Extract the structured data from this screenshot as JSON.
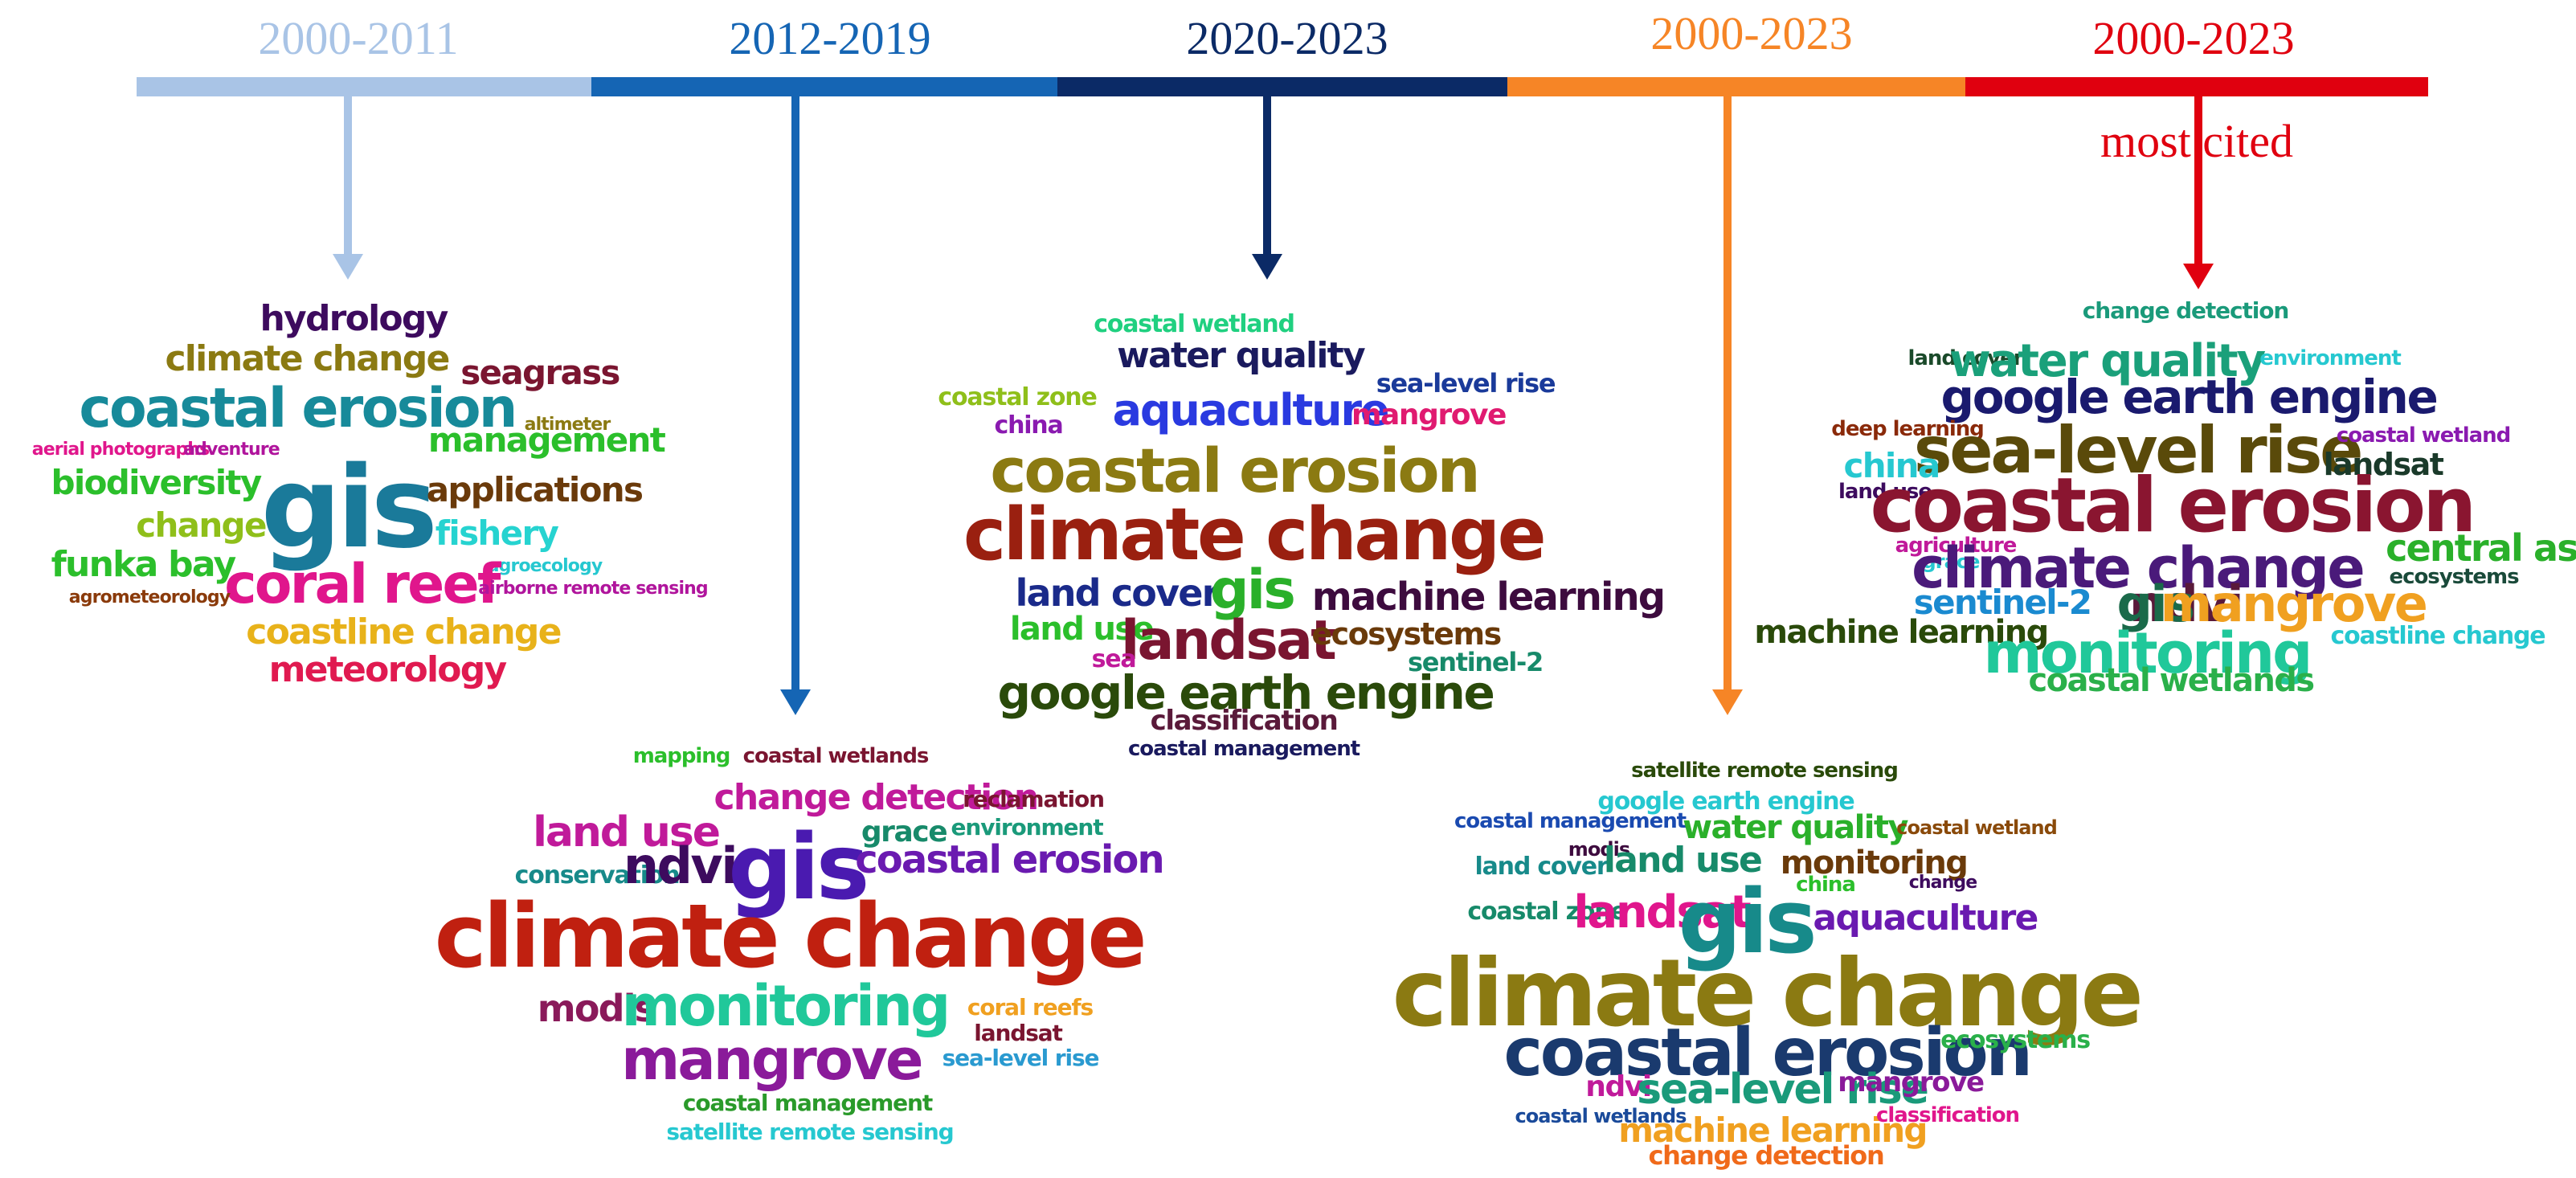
{
  "timeline": {
    "periods": [
      {
        "label": "2000-2011",
        "color": "#a9c4e6"
      },
      {
        "label": "2012-2019",
        "color": "#1565b4"
      },
      {
        "label": "2020-2023",
        "color": "#0b2a66"
      },
      {
        "label": "2000-2023",
        "color": "#f68526"
      },
      {
        "label": "2000-2023",
        "color": "#e0000f"
      }
    ],
    "note": "most cited"
  },
  "clouds": [
    {
      "words": [
        {
          "text": "hydrology",
          "color": "#3d0b5e"
        },
        {
          "text": "climate change",
          "color": "#8b7a12"
        },
        {
          "text": "seagrass",
          "color": "#7a1530"
        },
        {
          "text": "coastal erosion",
          "color": "#178a9a"
        },
        {
          "text": "altimeter",
          "color": "#8b7a12"
        },
        {
          "text": "aerial photographs",
          "color": "#e0168c"
        },
        {
          "text": "adventure",
          "color": "#b0149c"
        },
        {
          "text": "management",
          "color": "#2bbf2b"
        },
        {
          "text": "biodiversity",
          "color": "#2bbf2b"
        },
        {
          "text": "gis",
          "color": "#1a7a9a"
        },
        {
          "text": "applications",
          "color": "#6a3a0a"
        },
        {
          "text": "change",
          "color": "#8fbf1a"
        },
        {
          "text": "fishery",
          "color": "#26d3d0"
        },
        {
          "text": "funka bay",
          "color": "#2bbf2b"
        },
        {
          "text": "agroecology",
          "color": "#26c8d0"
        },
        {
          "text": "coral reef",
          "color": "#e0168c"
        },
        {
          "text": "airborne remote sensing",
          "color": "#b0149c"
        },
        {
          "text": "agrometeorology",
          "color": "#8a3a0a"
        },
        {
          "text": "coastline change",
          "color": "#e8b21a"
        },
        {
          "text": "meteorology",
          "color": "#e01a50"
        }
      ]
    },
    {
      "words": [
        {
          "text": "mapping",
          "color": "#2bbf2b"
        },
        {
          "text": "coastal wetlands",
          "color": "#7a1530"
        },
        {
          "text": "change detection",
          "color": "#c01a9a"
        },
        {
          "text": "reclamation",
          "color": "#7a1530"
        },
        {
          "text": "land use",
          "color": "#c01a9a"
        },
        {
          "text": "environment",
          "color": "#1a9a7a"
        },
        {
          "text": "grace",
          "color": "#178a6a"
        },
        {
          "text": "conservation",
          "color": "#178a8a"
        },
        {
          "text": "ndvi",
          "color": "#3d0b5e"
        },
        {
          "text": "gis",
          "color": "#4a1ab0"
        },
        {
          "text": "coastal erosion",
          "color": "#6a1ab0"
        },
        {
          "text": "climate change",
          "color": "#c02010"
        },
        {
          "text": "modis",
          "color": "#8a1a5a"
        },
        {
          "text": "monitoring",
          "color": "#20c89a"
        },
        {
          "text": "coral reefs",
          "color": "#f0a020"
        },
        {
          "text": "landsat",
          "color": "#7a1530"
        },
        {
          "text": "sea-level rise",
          "color": "#2a9ad0"
        },
        {
          "text": "mangrove",
          "color": "#8a1a9a"
        },
        {
          "text": "coastal management",
          "color": "#2a9a2a"
        },
        {
          "text": "satellite remote sensing",
          "color": "#26c8d0"
        }
      ]
    },
    {
      "words": [
        {
          "text": "coastal wetland",
          "color": "#20d080"
        },
        {
          "text": "water quality",
          "color": "#1a1a5e"
        },
        {
          "text": "sea-level rise",
          "color": "#1a3a9a"
        },
        {
          "text": "coastal zone",
          "color": "#8fbf1a"
        },
        {
          "text": "aquaculture",
          "color": "#2a3ae0"
        },
        {
          "text": "mangrove",
          "color": "#e01a70"
        },
        {
          "text": "china",
          "color": "#8a1ab0"
        },
        {
          "text": "coastal erosion",
          "color": "#8b7a12"
        },
        {
          "text": "climate change",
          "color": "#9a2010"
        },
        {
          "text": "land cover",
          "color": "#1a2a8a"
        },
        {
          "text": "gis",
          "color": "#2ab02a"
        },
        {
          "text": "machine learning",
          "color": "#3d0b3e"
        },
        {
          "text": "land use",
          "color": "#2bbf2b"
        },
        {
          "text": "landsat",
          "color": "#7a1530"
        },
        {
          "text": "ecosystems",
          "color": "#6a3a0a"
        },
        {
          "text": "sea",
          "color": "#c01a9a"
        },
        {
          "text": "sentinel-2",
          "color": "#178a6a"
        },
        {
          "text": "google earth engine",
          "color": "#2a4a0a"
        },
        {
          "text": "classification",
          "color": "#5a1a3a"
        },
        {
          "text": "coastal management",
          "color": "#1a1a5e"
        }
      ]
    },
    {
      "words": [
        {
          "text": "satellite remote sensing",
          "color": "#2a4a0a"
        },
        {
          "text": "google earth engine",
          "color": "#26c8d0"
        },
        {
          "text": "coastal management",
          "color": "#1a4ab0"
        },
        {
          "text": "water quality",
          "color": "#2ab02a"
        },
        {
          "text": "coastal wetland",
          "color": "#8a4a0a"
        },
        {
          "text": "modis",
          "color": "#3d0b3e"
        },
        {
          "text": "land cover",
          "color": "#178a8a"
        },
        {
          "text": "land use",
          "color": "#178a6a"
        },
        {
          "text": "monitoring",
          "color": "#6a3a0a"
        },
        {
          "text": "china",
          "color": "#2bbf2b"
        },
        {
          "text": "change",
          "color": "#3d0b5e"
        },
        {
          "text": "coastal zone",
          "color": "#178a6a"
        },
        {
          "text": "landsat",
          "color": "#e0168c"
        },
        {
          "text": "gis",
          "color": "#178a8a"
        },
        {
          "text": "aquaculture",
          "color": "#6a1ab0"
        },
        {
          "text": "climate change",
          "color": "#8b7a12"
        },
        {
          "text": "coastal erosion",
          "color": "#1a3a6e"
        },
        {
          "text": "ecosystems",
          "color": "#2ab04a"
        },
        {
          "text": "ndvi",
          "color": "#c01a9a"
        },
        {
          "text": "sea-level rise",
          "color": "#1a9a7a"
        },
        {
          "text": "mangrove",
          "color": "#8a1a9a"
        },
        {
          "text": "coastal wetlands",
          "color": "#1a4a9a"
        },
        {
          "text": "machine learning",
          "color": "#f0a020"
        },
        {
          "text": "classification",
          "color": "#e0168c"
        },
        {
          "text": "change detection",
          "color": "#f06a1a"
        }
      ]
    },
    {
      "words": [
        {
          "text": "change detection",
          "color": "#1a9a7a"
        },
        {
          "text": "land cover",
          "color": "#1a4a2a"
        },
        {
          "text": "water quality",
          "color": "#1aa07a"
        },
        {
          "text": "environment",
          "color": "#26c8d0"
        },
        {
          "text": "google earth engine",
          "color": "#1a1a6e"
        },
        {
          "text": "deep learning",
          "color": "#8a2a0a"
        },
        {
          "text": "sea-level rise",
          "color": "#5a4a0a"
        },
        {
          "text": "coastal wetland",
          "color": "#8a1ab0"
        },
        {
          "text": "china",
          "color": "#26c8d0"
        },
        {
          "text": "landsat",
          "color": "#1a3a2a"
        },
        {
          "text": "land use",
          "color": "#3d0b5e"
        },
        {
          "text": "coastal erosion",
          "color": "#8a1530"
        },
        {
          "text": "agriculture",
          "color": "#c01a9a"
        },
        {
          "text": "grace",
          "color": "#26c8d0"
        },
        {
          "text": "climate change",
          "color": "#4a1a7a"
        },
        {
          "text": "central asia",
          "color": "#2ab02a"
        },
        {
          "text": "ecosystems",
          "color": "#1a4a3a"
        },
        {
          "text": "sentinel-2",
          "color": "#1a8ad0"
        },
        {
          "text": "ndvi",
          "color": "#5a1a3a"
        },
        {
          "text": "gis",
          "color": "#1a6a4a"
        },
        {
          "text": "mangrove",
          "color": "#f0a020"
        },
        {
          "text": "machine learning",
          "color": "#2a4a0a"
        },
        {
          "text": "monitoring",
          "color": "#20c89a"
        },
        {
          "text": "coastline change",
          "color": "#26c8d0"
        },
        {
          "text": "coastal wetlands",
          "color": "#2ab04a"
        }
      ]
    }
  ]
}
